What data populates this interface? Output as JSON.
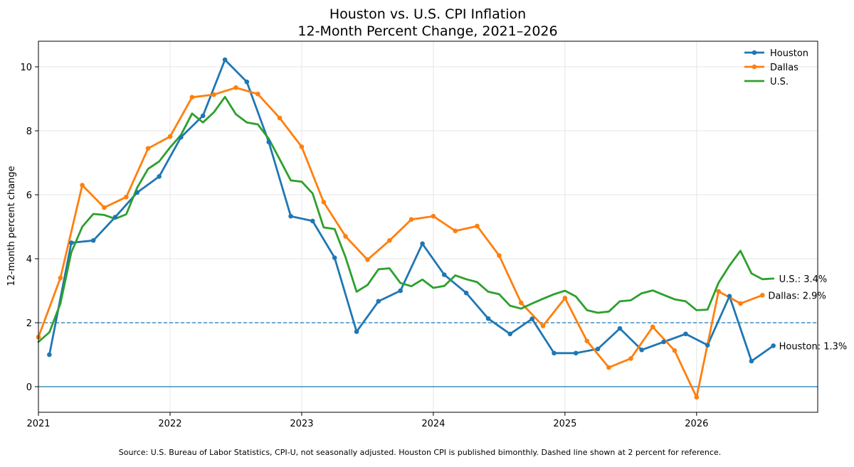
{
  "chart_data": {
    "type": "line",
    "title": "Houston vs. U.S. CPI Inflation",
    "subtitle": "12-Month Percent Change, 2021–2026",
    "ylabel": "12-month percent change",
    "xlabel": "",
    "xlim": [
      2021.0,
      2026.92
    ],
    "ylim": [
      -0.8,
      10.8
    ],
    "x_ticks": [
      2021,
      2022,
      2023,
      2024,
      2025,
      2026
    ],
    "x_tick_labels": [
      "2021",
      "2022",
      "2023",
      "2024",
      "2025",
      "2026"
    ],
    "y_ticks": [
      0,
      2,
      4,
      6,
      8,
      10
    ],
    "y_tick_labels": [
      "0",
      "2",
      "4",
      "6",
      "8",
      "10"
    ],
    "grid": true,
    "legend_position": "top-right",
    "reference_lines": [
      {
        "y": 2,
        "style": "dashed",
        "color": "#1f77b4"
      },
      {
        "y": 0,
        "style": "solid",
        "color": "#1f77b4"
      }
    ],
    "series": [
      {
        "name": "Houston",
        "color": "#1f77b4",
        "markers": true,
        "end_label": "Houston: 1.3%",
        "points": [
          [
            2021.083,
            1.0
          ],
          [
            2021.25,
            4.5
          ],
          [
            2021.417,
            4.57
          ],
          [
            2021.583,
            5.3
          ],
          [
            2021.75,
            6.07
          ],
          [
            2021.917,
            6.57
          ],
          [
            2022.083,
            7.8
          ],
          [
            2022.25,
            8.47
          ],
          [
            2022.417,
            10.22
          ],
          [
            2022.583,
            9.53
          ],
          [
            2022.75,
            7.65
          ],
          [
            2022.917,
            5.33
          ],
          [
            2023.083,
            5.18
          ],
          [
            2023.25,
            4.03
          ],
          [
            2023.417,
            1.72
          ],
          [
            2023.583,
            2.67
          ],
          [
            2023.75,
            3.0
          ],
          [
            2023.917,
            4.47
          ],
          [
            2024.083,
            3.5
          ],
          [
            2024.25,
            2.93
          ],
          [
            2024.417,
            2.13
          ],
          [
            2024.583,
            1.65
          ],
          [
            2024.75,
            2.12
          ],
          [
            2024.917,
            1.05
          ],
          [
            2025.083,
            1.05
          ],
          [
            2025.25,
            1.18
          ],
          [
            2025.417,
            1.82
          ],
          [
            2025.583,
            1.15
          ],
          [
            2025.75,
            1.4
          ],
          [
            2025.917,
            1.65
          ],
          [
            2026.083,
            1.3
          ],
          [
            2026.25,
            2.83
          ],
          [
            2026.417,
            0.8
          ],
          [
            2026.583,
            1.28
          ]
        ]
      },
      {
        "name": "Dallas",
        "color": "#ff7f0e",
        "markers": true,
        "end_label": "Dallas: 2.9%",
        "points": [
          [
            2021.0,
            1.55
          ],
          [
            2021.167,
            3.4
          ],
          [
            2021.333,
            6.3
          ],
          [
            2021.5,
            5.6
          ],
          [
            2021.667,
            5.93
          ],
          [
            2021.833,
            7.45
          ],
          [
            2022.0,
            7.82
          ],
          [
            2022.167,
            9.05
          ],
          [
            2022.333,
            9.13
          ],
          [
            2022.5,
            9.35
          ],
          [
            2022.667,
            9.15
          ],
          [
            2022.833,
            8.4
          ],
          [
            2023.0,
            7.5
          ],
          [
            2023.167,
            5.77
          ],
          [
            2023.333,
            4.7
          ],
          [
            2023.5,
            3.97
          ],
          [
            2023.667,
            4.57
          ],
          [
            2023.833,
            5.23
          ],
          [
            2024.0,
            5.33
          ],
          [
            2024.167,
            4.87
          ],
          [
            2024.333,
            5.02
          ],
          [
            2024.5,
            4.1
          ],
          [
            2024.667,
            2.62
          ],
          [
            2024.833,
            1.9
          ],
          [
            2025.0,
            2.77
          ],
          [
            2025.167,
            1.43
          ],
          [
            2025.333,
            0.6
          ],
          [
            2025.5,
            0.88
          ],
          [
            2025.667,
            1.87
          ],
          [
            2025.833,
            1.13
          ],
          [
            2026.0,
            -0.33
          ],
          [
            2026.167,
            2.98
          ],
          [
            2026.333,
            2.6
          ],
          [
            2026.5,
            2.86
          ]
        ]
      },
      {
        "name": "U.S.",
        "color": "#2ca02c",
        "markers": false,
        "end_label": "U.S.: 3.4%",
        "points": [
          [
            2021.0,
            1.4
          ],
          [
            2021.083,
            1.7
          ],
          [
            2021.167,
            2.6
          ],
          [
            2021.25,
            4.2
          ],
          [
            2021.333,
            5.0
          ],
          [
            2021.417,
            5.4
          ],
          [
            2021.5,
            5.37
          ],
          [
            2021.583,
            5.25
          ],
          [
            2021.667,
            5.39
          ],
          [
            2021.75,
            6.22
          ],
          [
            2021.833,
            6.81
          ],
          [
            2021.917,
            7.04
          ],
          [
            2022.0,
            7.48
          ],
          [
            2022.083,
            7.87
          ],
          [
            2022.167,
            8.54
          ],
          [
            2022.25,
            8.26
          ],
          [
            2022.333,
            8.58
          ],
          [
            2022.417,
            9.06
          ],
          [
            2022.5,
            8.52
          ],
          [
            2022.583,
            8.26
          ],
          [
            2022.667,
            8.2
          ],
          [
            2022.75,
            7.75
          ],
          [
            2022.833,
            7.11
          ],
          [
            2022.917,
            6.45
          ],
          [
            2023.0,
            6.41
          ],
          [
            2023.083,
            6.04
          ],
          [
            2023.167,
            4.98
          ],
          [
            2023.25,
            4.93
          ],
          [
            2023.333,
            4.05
          ],
          [
            2023.417,
            2.97
          ],
          [
            2023.5,
            3.18
          ],
          [
            2023.583,
            3.67
          ],
          [
            2023.667,
            3.7
          ],
          [
            2023.75,
            3.24
          ],
          [
            2023.833,
            3.14
          ],
          [
            2023.917,
            3.35
          ],
          [
            2024.0,
            3.09
          ],
          [
            2024.083,
            3.15
          ],
          [
            2024.167,
            3.48
          ],
          [
            2024.25,
            3.36
          ],
          [
            2024.333,
            3.27
          ],
          [
            2024.417,
            2.97
          ],
          [
            2024.5,
            2.89
          ],
          [
            2024.583,
            2.53
          ],
          [
            2024.667,
            2.44
          ],
          [
            2024.75,
            2.6
          ],
          [
            2024.833,
            2.75
          ],
          [
            2024.917,
            2.89
          ],
          [
            2025.0,
            3.0
          ],
          [
            2025.083,
            2.82
          ],
          [
            2025.167,
            2.39
          ],
          [
            2025.25,
            2.31
          ],
          [
            2025.333,
            2.35
          ],
          [
            2025.417,
            2.67
          ],
          [
            2025.5,
            2.7
          ],
          [
            2025.583,
            2.92
          ],
          [
            2025.667,
            3.01
          ],
          [
            2025.75,
            2.87
          ],
          [
            2025.833,
            2.73
          ],
          [
            2025.917,
            2.67
          ],
          [
            2026.0,
            2.39
          ],
          [
            2026.083,
            2.41
          ],
          [
            2026.167,
            3.25
          ],
          [
            2026.25,
            3.79
          ],
          [
            2026.333,
            4.25
          ],
          [
            2026.417,
            3.54
          ],
          [
            2026.5,
            3.36
          ],
          [
            2026.583,
            3.38
          ]
        ]
      }
    ]
  },
  "source_note": "Source: U.S. Bureau of Labor Statistics, CPI-U, not seasonally adjusted. Houston CPI is published bimonthly. Dashed line shown at 2 percent for reference."
}
